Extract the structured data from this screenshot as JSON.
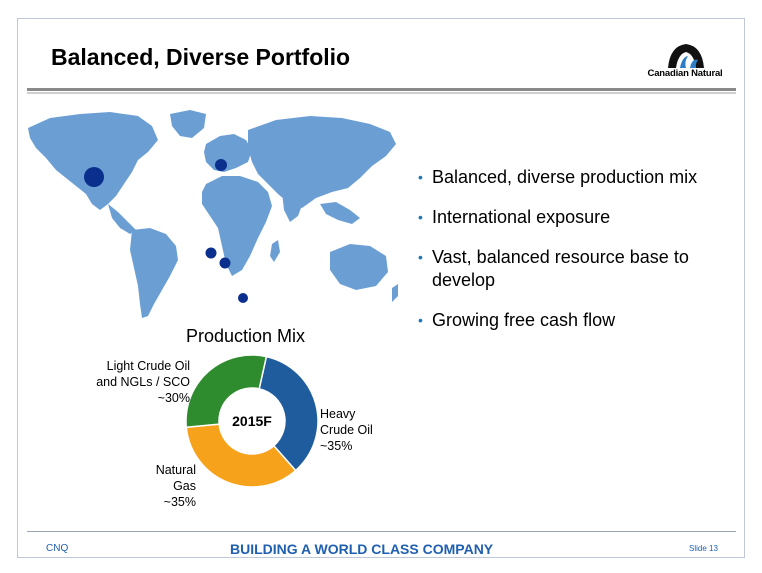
{
  "slide": {
    "title": "Balanced, Diverse Portfolio",
    "logo_text": "Canadian Natural"
  },
  "bullets": [
    {
      "text": "Balanced, diverse production mix"
    },
    {
      "text": "International exposure"
    },
    {
      "text": "Vast, balanced resource base to develop"
    },
    {
      "text": "Growing free cash flow"
    }
  ],
  "chart_data": {
    "type": "pie",
    "title": "Production Mix",
    "center_label": "2015F",
    "series": [
      {
        "name": "Heavy Crude Oil",
        "label_lines": [
          "Heavy",
          "Crude Oil",
          "~35%"
        ],
        "value": 35,
        "color": "#1f5c9e"
      },
      {
        "name": "Natural Gas",
        "label_lines": [
          "Natural",
          "Gas",
          "~35%"
        ],
        "value": 35,
        "color": "#f7a21b"
      },
      {
        "name": "Light Crude Oil and NGLs / SCO",
        "label_lines": [
          "Light Crude Oil",
          "and NGLs / SCO",
          "~30%"
        ],
        "value": 30,
        "color": "#2e8b2e"
      }
    ]
  },
  "map": {
    "land_color": "#6b9fd4",
    "marker_color": "#0a2f8c"
  },
  "footer": {
    "left": "CNQ",
    "center": "BUILDING A WORLD CLASS COMPANY",
    "right": "Slide 13"
  }
}
